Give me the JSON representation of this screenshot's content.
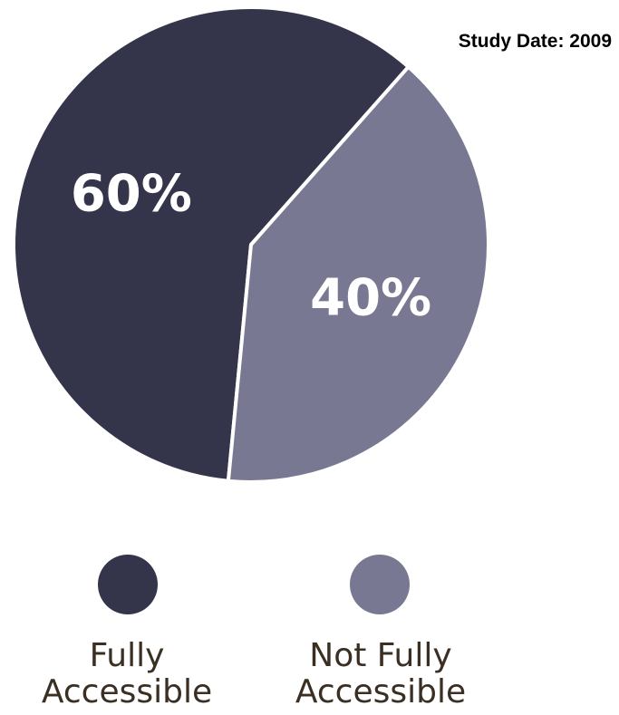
{
  "study_date": "Study Date: 2009",
  "colors": {
    "fully_accessible": "#34344b",
    "not_fully_accessible": "#787893",
    "label_text": "#3a2f22"
  },
  "chart_data": {
    "type": "pie",
    "title": "",
    "slices": [
      {
        "name": "Fully Accessible",
        "value": 60,
        "label": "60%"
      },
      {
        "name": "Not Fully Accessible",
        "value": 40,
        "label": "40%"
      }
    ],
    "legend": {
      "placement": "bottom",
      "items": [
        {
          "line1": "Fully",
          "line2": "Accessible"
        },
        {
          "line1": "Not Fully",
          "line2": "Accessible"
        }
      ]
    }
  }
}
